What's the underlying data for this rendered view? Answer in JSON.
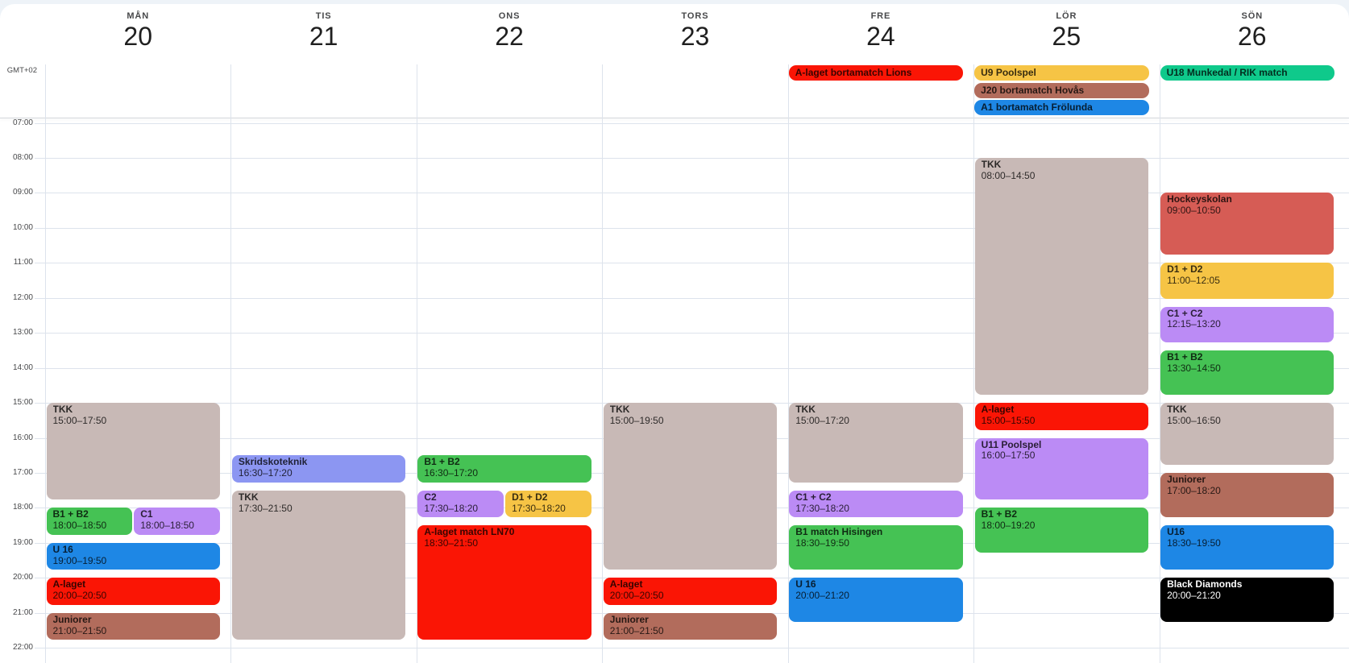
{
  "timezone_label": "GMT+02",
  "hours": [
    "07:00",
    "08:00",
    "09:00",
    "10:00",
    "11:00",
    "12:00",
    "13:00",
    "14:00",
    "15:00",
    "16:00",
    "17:00",
    "18:00",
    "19:00",
    "20:00",
    "21:00",
    "22:00"
  ],
  "palette": {
    "red": "#FA1505",
    "taupe": "#C8B9B6",
    "green": "#45C254",
    "purple": "#BB8BF5",
    "periwinkle": "#8C96F2",
    "blue": "#1E87E5",
    "brown": "#B26C5C",
    "yellow": "#F6C445",
    "salmon": "#D65C55",
    "teal": "#0FC98B",
    "black": "#000000"
  },
  "days": [
    {
      "name": "MÅN",
      "date": "20",
      "all_day": [],
      "events": [
        {
          "title": "TKK",
          "time": "15:00–17:50",
          "start": "15:00",
          "end": "17:50",
          "color": "taupe",
          "slot": "full"
        },
        {
          "title": "B1 + B2",
          "time": "18:00–18:50",
          "start": "18:00",
          "end": "18:50",
          "color": "green",
          "slot": "left"
        },
        {
          "title": "C1",
          "time": "18:00–18:50",
          "start": "18:00",
          "end": "18:50",
          "color": "purple",
          "slot": "right"
        },
        {
          "title": "U 16",
          "time": "19:00–19:50",
          "start": "19:00",
          "end": "19:50",
          "color": "blue",
          "slot": "full"
        },
        {
          "title": "A-laget",
          "time": "20:00–20:50",
          "start": "20:00",
          "end": "20:50",
          "color": "red",
          "slot": "full"
        },
        {
          "title": "Juniorer",
          "time": "21:00–21:50",
          "start": "21:00",
          "end": "21:50",
          "color": "brown",
          "slot": "full"
        }
      ]
    },
    {
      "name": "TIS",
      "date": "21",
      "all_day": [],
      "events": [
        {
          "title": "Skridskoteknik",
          "time": "16:30–17:20",
          "start": "16:30",
          "end": "17:20",
          "color": "periwinkle",
          "slot": "full"
        },
        {
          "title": "TKK",
          "time": "17:30–21:50",
          "start": "17:30",
          "end": "21:50",
          "color": "taupe",
          "slot": "full"
        }
      ]
    },
    {
      "name": "ONS",
      "date": "22",
      "all_day": [],
      "events": [
        {
          "title": "B1 + B2",
          "time": "16:30–17:20",
          "start": "16:30",
          "end": "17:20",
          "color": "green",
          "slot": "full"
        },
        {
          "title": "C2",
          "time": "17:30–18:20",
          "start": "17:30",
          "end": "18:20",
          "color": "purple",
          "slot": "left"
        },
        {
          "title": "D1 + D2",
          "time": "17:30–18:20",
          "start": "17:30",
          "end": "18:20",
          "color": "yellow",
          "slot": "right"
        },
        {
          "title": "A-laget match LN70",
          "time": "18:30–21:50",
          "start": "18:30",
          "end": "21:50",
          "color": "red",
          "slot": "full"
        }
      ]
    },
    {
      "name": "TORS",
      "date": "23",
      "all_day": [],
      "events": [
        {
          "title": "TKK",
          "time": "15:00–19:50",
          "start": "15:00",
          "end": "19:50",
          "color": "taupe",
          "slot": "full"
        },
        {
          "title": "A-laget",
          "time": "20:00–20:50",
          "start": "20:00",
          "end": "20:50",
          "color": "red",
          "slot": "full"
        },
        {
          "title": "Juniorer",
          "time": "21:00–21:50",
          "start": "21:00",
          "end": "21:50",
          "color": "brown",
          "slot": "full"
        }
      ]
    },
    {
      "name": "FRE",
      "date": "24",
      "all_day": [
        {
          "title": "A-laget bortamatch Lions",
          "color": "red"
        }
      ],
      "events": [
        {
          "title": "TKK",
          "time": "15:00–17:20",
          "start": "15:00",
          "end": "17:20",
          "color": "taupe",
          "slot": "full"
        },
        {
          "title": "C1 + C2",
          "time": "17:30–18:20",
          "start": "17:30",
          "end": "18:20",
          "color": "purple",
          "slot": "full"
        },
        {
          "title": "B1 match Hisingen",
          "time": "18:30–19:50",
          "start": "18:30",
          "end": "19:50",
          "color": "green",
          "slot": "full"
        },
        {
          "title": "U 16",
          "time": "20:00–21:20",
          "start": "20:00",
          "end": "21:20",
          "color": "blue",
          "slot": "full"
        }
      ]
    },
    {
      "name": "LÖR",
      "date": "25",
      "all_day": [
        {
          "title": "U9 Poolspel",
          "color": "yellow"
        },
        {
          "title": "J20 bortamatch Hovås",
          "color": "brown"
        },
        {
          "title": "A1 bortamatch Frölunda",
          "color": "blue"
        }
      ],
      "events": [
        {
          "title": "TKK",
          "time": "08:00–14:50",
          "start": "08:00",
          "end": "14:50",
          "color": "taupe",
          "slot": "full"
        },
        {
          "title": "A-laget",
          "time": "15:00–15:50",
          "start": "15:00",
          "end": "15:50",
          "color": "red",
          "slot": "full"
        },
        {
          "title": "U11 Poolspel",
          "time": "16:00–17:50",
          "start": "16:00",
          "end": "17:50",
          "color": "purple",
          "slot": "full"
        },
        {
          "title": "B1 + B2",
          "time": "18:00–19:20",
          "start": "18:00",
          "end": "19:20",
          "color": "green",
          "slot": "full"
        }
      ]
    },
    {
      "name": "SÖN",
      "date": "26",
      "all_day": [
        {
          "title": "U18 Munkedal / RIK match",
          "color": "teal"
        }
      ],
      "events": [
        {
          "title": "Hockeyskolan",
          "time": "09:00–10:50",
          "start": "09:00",
          "end": "10:50",
          "color": "salmon",
          "slot": "full"
        },
        {
          "title": "D1 + D2",
          "time": "11:00–12:05",
          "start": "11:00",
          "end": "12:05",
          "color": "yellow",
          "slot": "full"
        },
        {
          "title": "C1 + C2",
          "time": "12:15–13:20",
          "start": "12:15",
          "end": "13:20",
          "color": "purple",
          "slot": "full"
        },
        {
          "title": "B1 + B2",
          "time": "13:30–14:50",
          "start": "13:30",
          "end": "14:50",
          "color": "green",
          "slot": "full"
        },
        {
          "title": "TKK",
          "time": "15:00–16:50",
          "start": "15:00",
          "end": "16:50",
          "color": "taupe",
          "slot": "full"
        },
        {
          "title": "Juniorer",
          "time": "17:00–18:20",
          "start": "17:00",
          "end": "18:20",
          "color": "brown",
          "slot": "full"
        },
        {
          "title": "U16",
          "time": "18:30–19:50",
          "start": "18:30",
          "end": "19:50",
          "color": "blue",
          "slot": "full"
        },
        {
          "title": "Black Diamonds",
          "time": "20:00–21:20",
          "start": "20:00",
          "end": "21:20",
          "color": "black",
          "text": "light",
          "slot": "full"
        }
      ]
    }
  ]
}
